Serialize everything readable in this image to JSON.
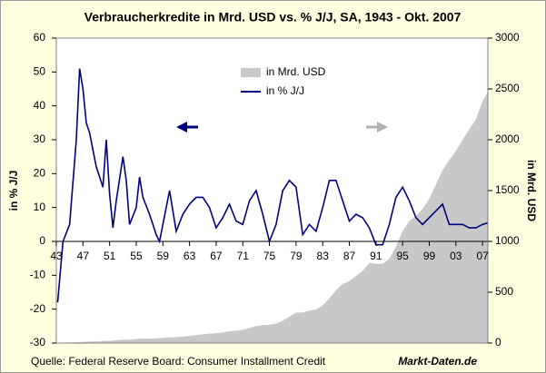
{
  "chart_data": {
    "type": "line_area",
    "title": "Verbraucherkredite in Mrd. USD vs. % J/J, SA, 1943 - Okt. 2007",
    "ylabel": "in % J/J",
    "y2label": "in Mrd. USD",
    "source": "Quelle: Federal Reserve Board: Consumer Installment Credit",
    "watermark": "Markt-Daten.de",
    "xlim": [
      1943,
      2007.8
    ],
    "xticks": [
      {
        "value": 1943,
        "label": "43"
      },
      {
        "value": 1947,
        "label": "47"
      },
      {
        "value": 1951,
        "label": "51"
      },
      {
        "value": 1955,
        "label": "55"
      },
      {
        "value": 1959,
        "label": "59"
      },
      {
        "value": 1963,
        "label": "63"
      },
      {
        "value": 1967,
        "label": "67"
      },
      {
        "value": 1971,
        "label": "71"
      },
      {
        "value": 1975,
        "label": "75"
      },
      {
        "value": 1979,
        "label": "79"
      },
      {
        "value": 1983,
        "label": "83"
      },
      {
        "value": 1987,
        "label": "87"
      },
      {
        "value": 1991,
        "label": "91"
      },
      {
        "value": 1995,
        "label": "95"
      },
      {
        "value": 1999,
        "label": "99"
      },
      {
        "value": 2003,
        "label": "03"
      },
      {
        "value": 2007,
        "label": "07"
      }
    ],
    "ylim": [
      -30,
      60
    ],
    "yticks": [
      -30,
      -20,
      -10,
      0,
      10,
      20,
      30,
      40,
      50,
      60
    ],
    "y2lim": [
      0,
      3000
    ],
    "y2ticks": [
      0,
      500,
      1000,
      1500,
      2000,
      2500,
      3000
    ],
    "legend": "top",
    "series": [
      {
        "name": "in Mrd. USD",
        "color": "#c8c8c8",
        "axis": "y2",
        "kind": "area",
        "x": [
          1943,
          1944,
          1945,
          1946,
          1947,
          1948,
          1949,
          1950,
          1951,
          1952,
          1953,
          1954,
          1955,
          1956,
          1957,
          1958,
          1959,
          1960,
          1961,
          1962,
          1963,
          1964,
          1965,
          1966,
          1967,
          1968,
          1969,
          1970,
          1971,
          1972,
          1973,
          1974,
          1975,
          1976,
          1977,
          1978,
          1979,
          1980,
          1981,
          1982,
          1983,
          1984,
          1985,
          1986,
          1987,
          1988,
          1989,
          1990,
          1991,
          1992,
          1993,
          1994,
          1995,
          1996,
          1997,
          1998,
          1999,
          2000,
          2001,
          2002,
          2003,
          2004,
          2005,
          2006,
          2007,
          2007.8
        ],
        "values": [
          5,
          5,
          6,
          8,
          11,
          14,
          17,
          21,
          22,
          28,
          32,
          33,
          40,
          43,
          45,
          45,
          51,
          56,
          58,
          63,
          70,
          78,
          86,
          93,
          97,
          105,
          116,
          122,
          131,
          147,
          167,
          178,
          180,
          192,
          220,
          260,
          300,
          300,
          320,
          330,
          370,
          440,
          520,
          580,
          610,
          660,
          710,
          790,
          780,
          780,
          830,
          950,
          1100,
          1200,
          1250,
          1320,
          1420,
          1560,
          1700,
          1800,
          1890,
          2000,
          2100,
          2200,
          2380,
          2470
        ]
      },
      {
        "name": "in % J/J",
        "color": "#000080",
        "axis": "y",
        "kind": "line",
        "x": [
          1943.2,
          1944,
          1945,
          1946,
          1946.5,
          1947,
          1947.5,
          1948,
          1949,
          1950,
          1950.5,
          1951,
          1951.5,
          1952,
          1953,
          1953.5,
          1954,
          1955,
          1955.5,
          1956,
          1957,
          1958,
          1958.5,
          1959,
          1959.5,
          1960,
          1961,
          1962,
          1963,
          1964,
          1965,
          1966,
          1967,
          1968,
          1969,
          1970,
          1971,
          1972,
          1973,
          1974,
          1975,
          1976,
          1977,
          1978,
          1979,
          1980,
          1981,
          1982,
          1983,
          1984,
          1985,
          1986,
          1987,
          1988,
          1989,
          1990,
          1991,
          1992,
          1993,
          1994,
          1995,
          1996,
          1997,
          1998,
          1999,
          2000,
          2001,
          2002,
          2003,
          2004,
          2005,
          2006,
          2007,
          2007.8
        ],
        "values": [
          -18,
          0,
          5,
          30,
          51,
          45,
          35,
          32,
          22,
          16,
          30,
          14,
          4,
          12,
          25,
          18,
          5,
          10,
          19,
          13,
          8,
          2,
          0,
          5,
          10,
          15,
          3,
          8,
          11,
          13,
          13,
          10,
          4,
          7,
          11,
          6,
          5,
          12,
          15,
          8,
          0,
          5,
          15,
          18,
          16,
          2,
          5,
          3,
          10,
          18,
          18,
          12,
          6,
          8,
          7,
          4,
          -1,
          -1,
          5,
          13,
          16,
          12,
          7,
          5,
          7,
          9,
          11,
          5,
          5,
          5,
          4,
          4,
          5,
          5.5
        ]
      }
    ]
  }
}
